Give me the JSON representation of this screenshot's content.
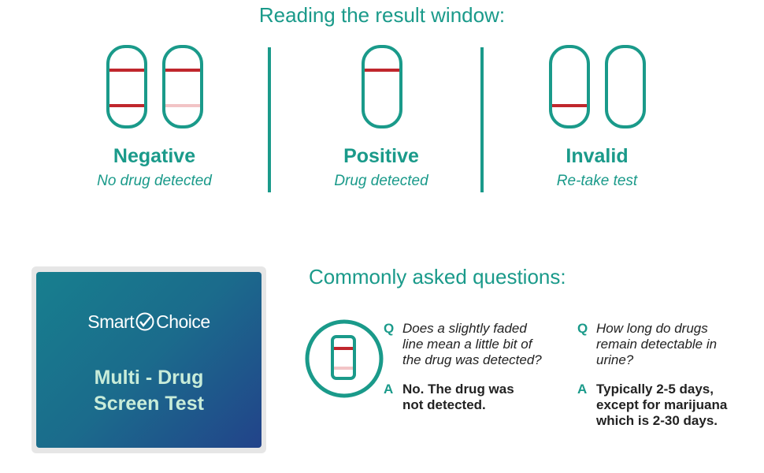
{
  "result_section": {
    "title": "Reading the result window:",
    "results": [
      {
        "label": "Negative",
        "description": "No drug detected"
      },
      {
        "label": "Positive",
        "description": "Drug detected"
      },
      {
        "label": "Invalid",
        "description": "Re-take test"
      }
    ]
  },
  "product": {
    "brand": "SmartChoice",
    "name_line1": "Multi - Drug",
    "name_line2": "Screen Test"
  },
  "faq": {
    "title": "Commonly asked questions:",
    "q_marker": "Q",
    "a_marker": "A",
    "items": [
      {
        "question": [
          "Does a slightly faded",
          "line mean a little bit of",
          "the drug was detected?"
        ],
        "answer": [
          "No. The drug was",
          "not detected."
        ]
      },
      {
        "question": [
          "How long do drugs",
          "remain detectable in",
          "urine?"
        ],
        "answer": [
          "Typically 2-5 days,",
          "except for marijuana",
          "which is 2-30 days."
        ]
      }
    ]
  },
  "colors": {
    "teal": "#1a9a8a",
    "red_line": "#c0272d",
    "faded_line": "#f2c4c6"
  }
}
